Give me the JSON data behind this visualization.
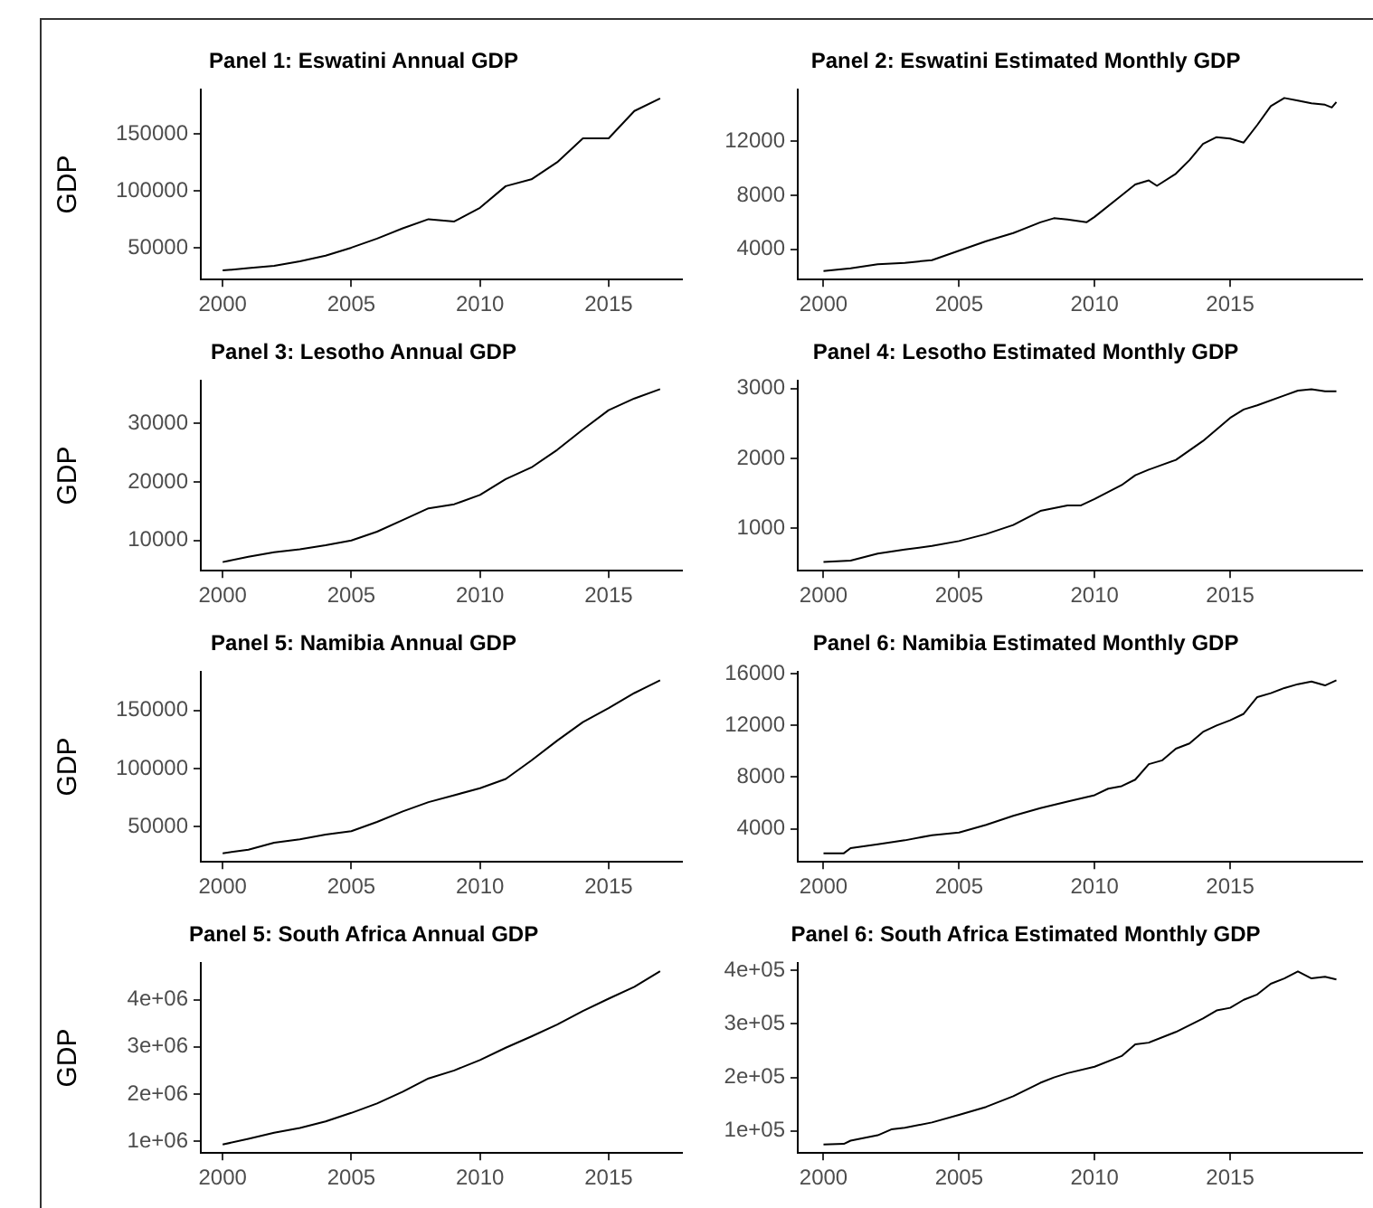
{
  "chart_data": [
    {
      "type": "line",
      "title": "Panel 1: Eswatini Annual GDP",
      "ylabel": "GDP",
      "x": [
        2000,
        2001,
        2002,
        2003,
        2004,
        2005,
        2006,
        2007,
        2008,
        2009,
        2010,
        2011,
        2012,
        2013,
        2014,
        2015,
        2016,
        2017
      ],
      "series": [
        {
          "color": "#000000",
          "values": [
            30000,
            32000,
            34000,
            38000,
            43000,
            50000,
            58000,
            67000,
            75000,
            73000,
            85000,
            104000,
            110000,
            125000,
            146000,
            146000,
            170000,
            181000
          ]
        }
      ],
      "xlim": [
        1999.15,
        2017.85
      ],
      "xticks": [
        2000,
        2005,
        2010,
        2015
      ],
      "ylim": [
        22000,
        189000
      ],
      "yticks": [
        50000,
        100000,
        150000
      ],
      "legend": false,
      "marker": "none",
      "line_style": "solid"
    },
    {
      "type": "line",
      "title": "Panel 2: Eswatini Estimated Monthly GDP",
      "x": [
        2000,
        2001,
        2002,
        2003,
        2004,
        2005,
        2006,
        2007,
        2008,
        2008.5,
        2009,
        2009.7,
        2010,
        2011,
        2011.5,
        2012,
        2012.3,
        2013,
        2013.5,
        2014,
        2014.5,
        2015,
        2015.5,
        2016,
        2016.5,
        2017,
        2017.5,
        2018,
        2018.5,
        2018.75,
        2018.92
      ],
      "series": [
        {
          "color": "#000000",
          "values": [
            2400,
            2600,
            2900,
            3000,
            3200,
            3900,
            4600,
            5200,
            6000,
            6300,
            6200,
            6000,
            6400,
            8000,
            8800,
            9100,
            8700,
            9600,
            10600,
            11800,
            12300,
            12200,
            11900,
            13200,
            14600,
            15200,
            15000,
            14800,
            14700,
            14500,
            14900
          ]
        }
      ],
      "xlim": [
        1999.05,
        2019.87
      ],
      "xticks": [
        2000,
        2005,
        2010,
        2015
      ],
      "ylim": [
        1760,
        15840
      ],
      "yticks": [
        4000,
        8000,
        12000
      ],
      "legend": false,
      "marker": "none",
      "line_style": "solid"
    },
    {
      "type": "line",
      "title": "Panel 3: Lesotho Annual GDP",
      "ylabel": "GDP",
      "x": [
        2000,
        2001,
        2002,
        2003,
        2004,
        2005,
        2006,
        2007,
        2008,
        2009,
        2010,
        2011,
        2012,
        2013,
        2014,
        2015,
        2016,
        2017
      ],
      "series": [
        {
          "color": "#000000",
          "values": [
            6300,
            7200,
            8000,
            8500,
            9200,
            10000,
            11500,
            13500,
            15500,
            16200,
            17800,
            20500,
            22500,
            25500,
            29000,
            32300,
            34300,
            35900
          ]
        }
      ],
      "xlim": [
        1999.15,
        2017.85
      ],
      "xticks": [
        2000,
        2005,
        2010,
        2015
      ],
      "ylim": [
        4820,
        37380
      ],
      "yticks": [
        10000,
        20000,
        30000
      ],
      "legend": false,
      "marker": "none",
      "line_style": "solid"
    },
    {
      "type": "line",
      "title": "Panel 4: Lesotho Estimated Monthly GDP",
      "x": [
        2000,
        2001,
        2002,
        2003,
        2004,
        2005,
        2006,
        2007,
        2008,
        2009,
        2009.5,
        2010,
        2011,
        2011.5,
        2012,
        2013,
        2014,
        2015,
        2015.5,
        2016,
        2017,
        2017.5,
        2018,
        2018.5,
        2018.92
      ],
      "series": [
        {
          "color": "#000000",
          "values": [
            520,
            540,
            640,
            700,
            750,
            820,
            920,
            1050,
            1250,
            1330,
            1330,
            1420,
            1620,
            1760,
            1840,
            1980,
            2250,
            2580,
            2700,
            2760,
            2900,
            2970,
            2990,
            2960,
            2960
          ]
        }
      ],
      "xlim": [
        1999.05,
        2019.87
      ],
      "xticks": [
        2000,
        2005,
        2010,
        2015
      ],
      "ylim": [
        396,
        3114
      ],
      "yticks": [
        1000,
        2000,
        3000
      ],
      "legend": false,
      "marker": "none",
      "line_style": "solid"
    },
    {
      "type": "line",
      "title": "Panel 5: Namibia Annual GDP",
      "ylabel": "GDP",
      "x": [
        2000,
        2001,
        2002,
        2003,
        2004,
        2005,
        2006,
        2007,
        2008,
        2009,
        2010,
        2011,
        2012,
        2013,
        2014,
        2015,
        2016,
        2017
      ],
      "series": [
        {
          "color": "#000000",
          "values": [
            27000,
            30000,
            36000,
            39000,
            43000,
            46000,
            54000,
            63000,
            71000,
            77000,
            83000,
            91000,
            107000,
            124000,
            140000,
            152000,
            165000,
            176000
          ]
        }
      ],
      "xlim": [
        1999.15,
        2017.85
      ],
      "xticks": [
        2000,
        2005,
        2010,
        2015
      ],
      "ylim": [
        19550,
        183450
      ],
      "yticks": [
        50000,
        100000,
        150000
      ],
      "legend": false,
      "marker": "none",
      "line_style": "solid"
    },
    {
      "type": "line",
      "title": "Panel 6: Namibia Estimated Monthly GDP",
      "x": [
        2000,
        2000.75,
        2001,
        2002,
        2003,
        2004,
        2005,
        2006,
        2007,
        2008,
        2009,
        2010,
        2010.5,
        2011,
        2011.5,
        2012,
        2012.5,
        2013,
        2013.5,
        2014,
        2014.5,
        2015,
        2015.5,
        2016,
        2016.5,
        2017,
        2017.5,
        2018,
        2018.5,
        2018.92
      ],
      "series": [
        {
          "color": "#000000",
          "values": [
            2100,
            2100,
            2500,
            2800,
            3100,
            3500,
            3700,
            4300,
            5000,
            5600,
            6100,
            6600,
            7100,
            7300,
            7800,
            9000,
            9300,
            10200,
            10600,
            11500,
            12000,
            12400,
            12900,
            14200,
            14500,
            14900,
            15200,
            15400,
            15100,
            15500
          ]
        }
      ],
      "xlim": [
        1999.05,
        2019.87
      ],
      "xticks": [
        2000,
        2005,
        2010,
        2015
      ],
      "ylim": [
        1430,
        16170
      ],
      "yticks": [
        4000,
        8000,
        12000,
        16000
      ],
      "legend": false,
      "marker": "none",
      "line_style": "solid"
    },
    {
      "type": "line",
      "title": "Panel 5: South Africa Annual GDP",
      "ylabel": "GDP",
      "x": [
        2000,
        2001,
        2002,
        2003,
        2004,
        2005,
        2006,
        2007,
        2008,
        2009,
        2010,
        2011,
        2012,
        2013,
        2014,
        2015,
        2016,
        2017
      ],
      "series": [
        {
          "color": "#000000",
          "values": [
            930000,
            1050000,
            1180000,
            1280000,
            1420000,
            1600000,
            1800000,
            2050000,
            2330000,
            2500000,
            2720000,
            2980000,
            3220000,
            3470000,
            3760000,
            4020000,
            4270000,
            4600000
          ]
        }
      ],
      "xlim": [
        1999.15,
        2017.85
      ],
      "xticks": [
        2000,
        2005,
        2010,
        2015
      ],
      "ylim": [
        750000,
        4780000
      ],
      "yticks": [
        {
          "value": 1000000,
          "label": "1e+06"
        },
        {
          "value": 2000000,
          "label": "2e+06"
        },
        {
          "value": 3000000,
          "label": "3e+06"
        },
        {
          "value": 4000000,
          "label": "4e+06"
        }
      ],
      "legend": false,
      "marker": "none",
      "line_style": "solid"
    },
    {
      "type": "line",
      "title": "Panel 6: South Africa Estimated Monthly GDP",
      "x": [
        2000,
        2000.75,
        2001,
        2002,
        2002.5,
        2003,
        2004,
        2005,
        2006,
        2007,
        2008,
        2008.5,
        2009,
        2010,
        2011,
        2011.5,
        2012,
        2013,
        2014,
        2014.5,
        2015,
        2015.5,
        2016,
        2016.5,
        2017,
        2017.5,
        2018,
        2018.5,
        2018.92
      ],
      "series": [
        {
          "color": "#000000",
          "values": [
            75000,
            76000,
            82000,
            92000,
            103000,
            106000,
            116000,
            130000,
            145000,
            165000,
            190000,
            200000,
            208000,
            220000,
            240000,
            262000,
            265000,
            285000,
            310000,
            325000,
            330000,
            345000,
            355000,
            375000,
            385000,
            398000,
            385000,
            388000,
            383000
          ]
        }
      ],
      "xlim": [
        1999.05,
        2019.87
      ],
      "xticks": [
        2000,
        2005,
        2010,
        2015
      ],
      "ylim": [
        58850,
        414150
      ],
      "yticks": [
        {
          "value": 100000,
          "label": "1e+05"
        },
        {
          "value": 200000,
          "label": "2e+05"
        },
        {
          "value": 300000,
          "label": "3e+05"
        },
        {
          "value": 400000,
          "label": "4e+05"
        }
      ],
      "legend": false,
      "marker": "none",
      "line_style": "solid"
    }
  ]
}
